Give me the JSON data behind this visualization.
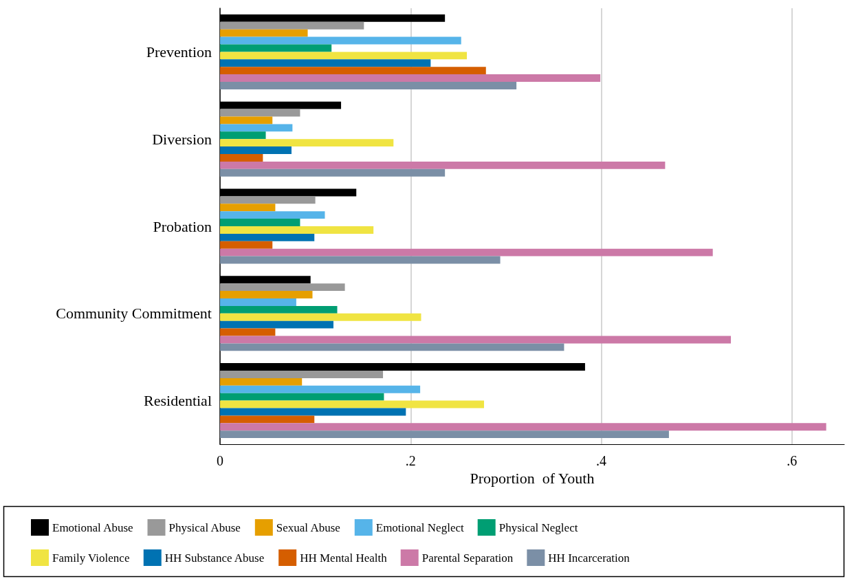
{
  "chart_data": {
    "type": "bar",
    "orientation": "horizontal",
    "xlabel": "Proportion  of Youth",
    "categories": [
      "Prevention",
      "Diversion",
      "Probation",
      "Community Commitment",
      "Residential"
    ],
    "series": [
      {
        "name": "Emotional Abuse",
        "color": "#000000",
        "values": [
          0.236,
          0.127,
          0.143,
          0.095,
          0.383
        ]
      },
      {
        "name": "Physical Abuse",
        "color": "#999999",
        "values": [
          0.151,
          0.084,
          0.1,
          0.131,
          0.171
        ]
      },
      {
        "name": "Sexual Abuse",
        "color": "#e69f00",
        "values": [
          0.092,
          0.055,
          0.058,
          0.097,
          0.086
        ]
      },
      {
        "name": "Emotional Neglect",
        "color": "#56b4e9",
        "values": [
          0.253,
          0.076,
          0.11,
          0.08,
          0.21
        ]
      },
      {
        "name": "Physical Neglect",
        "color": "#009e73",
        "values": [
          0.117,
          0.048,
          0.084,
          0.123,
          0.172
        ]
      },
      {
        "name": "Family Violence",
        "color": "#f0e442",
        "values": [
          0.259,
          0.182,
          0.161,
          0.211,
          0.277
        ]
      },
      {
        "name": "HH Substance Abuse",
        "color": "#0072b2",
        "values": [
          0.221,
          0.075,
          0.099,
          0.119,
          0.195
        ]
      },
      {
        "name": "HH Mental Health",
        "color": "#d55e00",
        "values": [
          0.279,
          0.045,
          0.055,
          0.058,
          0.099
        ]
      },
      {
        "name": "Parental Separation",
        "color": "#cc79a7",
        "values": [
          0.399,
          0.467,
          0.517,
          0.536,
          0.636
        ]
      },
      {
        "name": "HH Incarceration",
        "color": "#7b8fa6",
        "values": [
          0.311,
          0.236,
          0.294,
          0.361,
          0.471
        ]
      }
    ],
    "xlim": [
      0,
      0.655
    ],
    "xticks": [
      0,
      {
        "value": 0.2,
        "label": ".2"
      },
      {
        "value": 0.4,
        "label": ".4"
      },
      {
        "value": 0.6,
        "label": ".6"
      }
    ],
    "grid": "x",
    "legend": "bottom"
  }
}
